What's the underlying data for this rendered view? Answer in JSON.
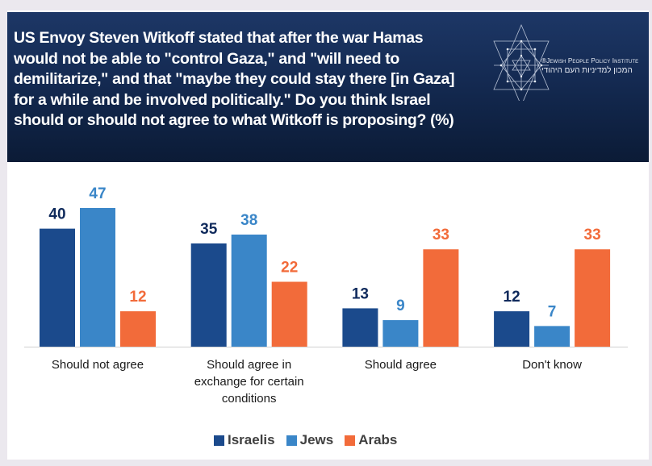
{
  "header": {
    "title": "US Envoy Steven Witkoff stated that after the war Hamas would not be able to \"control Gaza,\" and \"will need to demilitarize,\" and that \"maybe they could stay there [in Gaza] for a while and be involved politically.\" Do you think Israel should or should not agree to what Witkoff is proposing? (%)",
    "logo": {
      "icon": "star-of-david-geometric-icon",
      "name_en": "®Jewish People Policy Institute",
      "name_he": "המכון למדיניות העם היהודי"
    }
  },
  "colors": {
    "header_top": "#1d3766",
    "header_bottom": "#0b1b36",
    "Israelis": "#1b4a8c",
    "Jews": "#3a86c8",
    "Arabs": "#f26b3a",
    "Israelis_label": "#0f2a5c",
    "Jews_label": "#3a86c8",
    "Arabs_label": "#f26b3a",
    "axis": "#d9d9d9",
    "category_text": "#1a1a1a",
    "legend_text": "#404040"
  },
  "chart_data": {
    "type": "bar",
    "title": "US Envoy Steven Witkoff stated that after the war Hamas would not be able to \"control Gaza,\" and \"will need to demilitarize,\" and that \"maybe they could stay there [in Gaza] for a while and be involved politically.\" Do you think Israel should or should not agree to what Witkoff is proposing? (%)",
    "xlabel": "",
    "ylabel": "",
    "ylim": [
      0,
      50
    ],
    "grid": false,
    "legend_position": "bottom",
    "categories": [
      "Should not agree",
      "Should agree in exchange for certain conditions",
      "Should agree",
      "Don't know"
    ],
    "category_lines": [
      [
        "Should not agree"
      ],
      [
        "Should agree in",
        "exchange for certain",
        "conditions"
      ],
      [
        "Should agree"
      ],
      [
        "Don't know"
      ]
    ],
    "series": [
      {
        "name": "Israelis",
        "values": [
          40,
          35,
          13,
          12
        ]
      },
      {
        "name": "Jews",
        "values": [
          47,
          38,
          9,
          7
        ]
      },
      {
        "name": "Arabs",
        "values": [
          12,
          22,
          33,
          33
        ]
      }
    ]
  },
  "legend": {
    "items": [
      {
        "label": "Israelis"
      },
      {
        "label": "Jews"
      },
      {
        "label": "Arabs"
      }
    ]
  }
}
